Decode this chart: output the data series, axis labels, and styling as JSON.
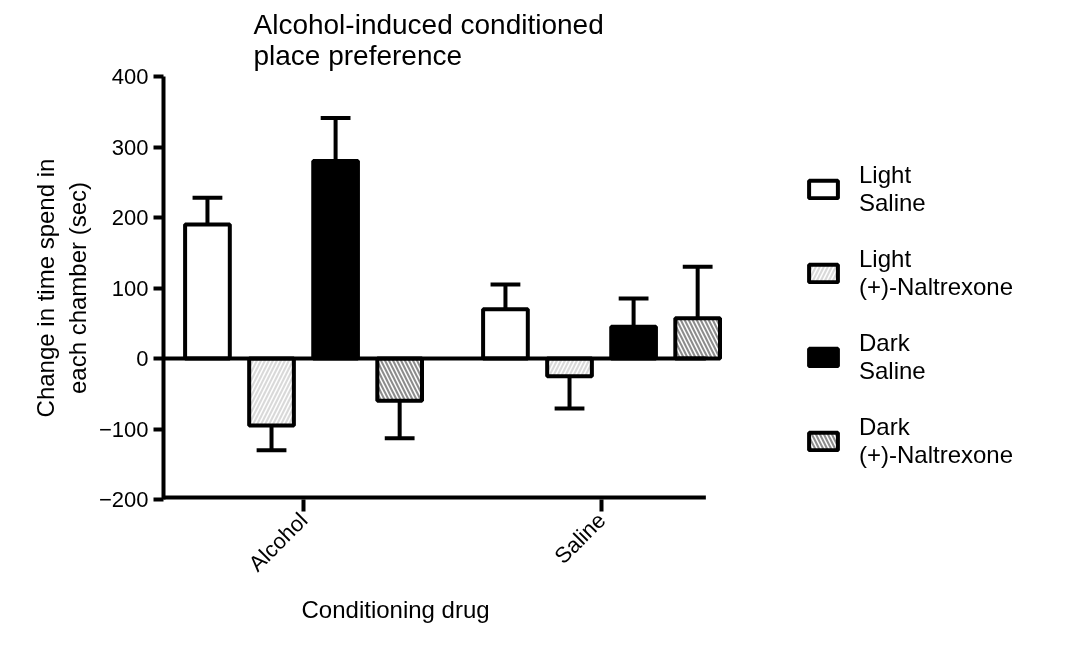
{
  "chart_data": {
    "type": "bar",
    "title": "Alcohol-induced conditioned place preference",
    "xlabel": "Conditioning drug",
    "ylabel": "Change in time spend in each chamber (sec)",
    "categories": [
      "Alcohol",
      "Saline"
    ],
    "series": [
      {
        "name": "Light Saline",
        "color": "#ffffff",
        "values": [
          190,
          70
        ],
        "errors": [
          [
            190,
            228
          ],
          [
            70,
            105
          ]
        ]
      },
      {
        "name": "Light (+)-Naltrexone",
        "color": "#d9d9d9",
        "values": [
          -95,
          -25
        ],
        "errors": [
          [
            -130,
            -95
          ],
          [
            -71,
            -25
          ]
        ]
      },
      {
        "name": "Dark Saline",
        "color": "#000000",
        "values": [
          280,
          45
        ],
        "errors": [
          [
            280,
            341
          ],
          [
            45,
            85
          ]
        ]
      },
      {
        "name": "Dark (+)-Naltrexone",
        "color": "#8c8c8c",
        "values": [
          -60,
          57
        ],
        "errors": [
          [
            -113,
            -60
          ],
          [
            57,
            130
          ]
        ]
      }
    ],
    "ref_lines": [
      {
        "axis": "y",
        "value": 0,
        "color": "#000000"
      }
    ],
    "ylim": [
      -200,
      400
    ],
    "yticks": [
      -200,
      -100,
      0,
      100,
      200,
      300,
      400
    ],
    "grid": false,
    "legend": "right"
  }
}
